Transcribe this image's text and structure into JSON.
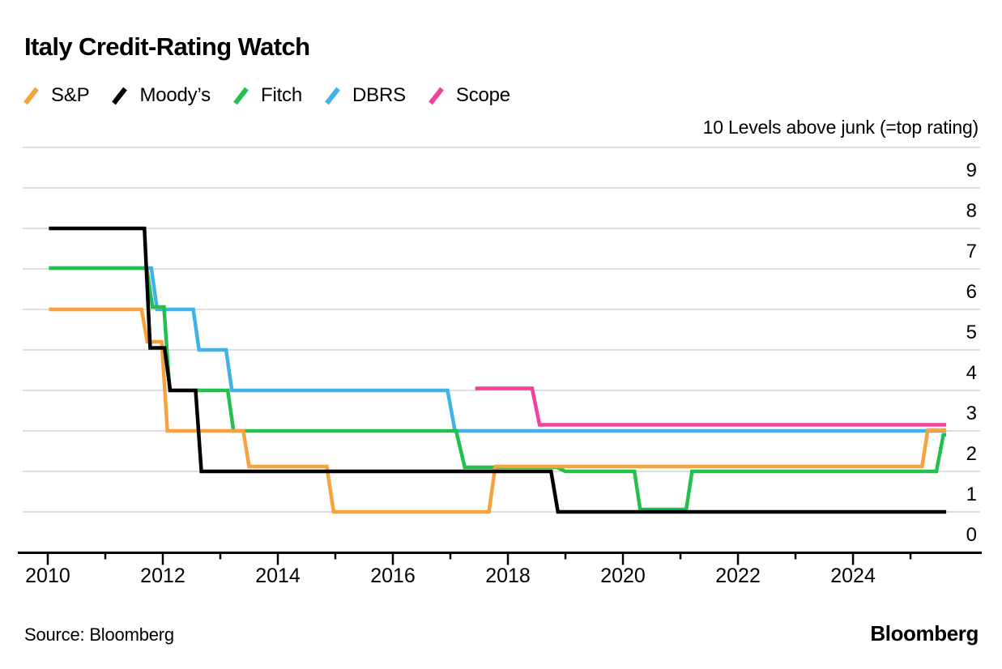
{
  "title": "Italy Credit-Rating Watch",
  "source": "Source: Bloomberg",
  "brand": "Bloomberg",
  "colors": {
    "sp": "#f7a23c",
    "moodys": "#000000",
    "fitch": "#22c04c",
    "dbrs": "#3fb2e8",
    "scope": "#f2419e",
    "gridline": "#d4d4d4",
    "axis": "#000000"
  },
  "legend": [
    {
      "label": "S&P",
      "color": "#f7a23c"
    },
    {
      "label": "Moody’s",
      "color": "#000000"
    },
    {
      "label": "Fitch",
      "color": "#22c04c"
    },
    {
      "label": "DBRS",
      "color": "#3fb2e8"
    },
    {
      "label": "Scope",
      "color": "#f2419e"
    }
  ],
  "chart_data": {
    "type": "line",
    "title": "Italy Credit-Rating Watch",
    "ylabel": "10 Levels above junk (=top rating)",
    "xlabel": "",
    "xlim": [
      2009.592,
      2026.21
    ],
    "ylim": [
      0,
      10
    ],
    "grid": "horizontal",
    "legend_position": "top-left",
    "x_ticks_major": [
      2010,
      2012,
      2014,
      2016,
      2018,
      2020,
      2022,
      2024
    ],
    "x_ticks_minor": [
      2011,
      2013,
      2015,
      2017,
      2019,
      2021,
      2023,
      2025
    ],
    "y_tick_labels": [
      0,
      1,
      2,
      3,
      4,
      5,
      6,
      7,
      8,
      9
    ],
    "y_gridline_levels": [
      1,
      2,
      3,
      4,
      5,
      6,
      7,
      8,
      9,
      10
    ],
    "series": [
      {
        "name": "DBRS",
        "color": "#3fb2e8",
        "points": [
          [
            2010.02,
            7.02
          ],
          [
            2011.8,
            7.02
          ],
          [
            2011.9,
            6
          ],
          [
            2012.53,
            6
          ],
          [
            2012.63,
            5
          ],
          [
            2013.1,
            5
          ],
          [
            2013.2,
            4
          ],
          [
            2016.95,
            4
          ],
          [
            2017.08,
            3
          ],
          [
            2025.62,
            3
          ]
        ]
      },
      {
        "name": "Fitch",
        "color": "#22c04c",
        "points": [
          [
            2010.02,
            7.02
          ],
          [
            2011.72,
            7.02
          ],
          [
            2011.82,
            6.06
          ],
          [
            2012.02,
            6.06
          ],
          [
            2012.12,
            4
          ],
          [
            2013.13,
            4
          ],
          [
            2013.23,
            3
          ],
          [
            2017.1,
            3
          ],
          [
            2017.25,
            2.1
          ],
          [
            2018.85,
            2.1
          ],
          [
            2019.0,
            2
          ],
          [
            2020.2,
            2
          ],
          [
            2020.3,
            1.06
          ],
          [
            2021.1,
            1.06
          ],
          [
            2021.2,
            2
          ],
          [
            2025.45,
            2
          ],
          [
            2025.57,
            2.9
          ],
          [
            2025.62,
            2.9
          ]
        ]
      },
      {
        "name": "S&P",
        "color": "#f7a23c",
        "points": [
          [
            2010.02,
            6
          ],
          [
            2011.63,
            6
          ],
          [
            2011.73,
            5.2
          ],
          [
            2011.98,
            5.2
          ],
          [
            2012.08,
            3
          ],
          [
            2013.4,
            3
          ],
          [
            2013.5,
            2.12
          ],
          [
            2014.85,
            2.12
          ],
          [
            2014.97,
            1
          ],
          [
            2017.67,
            1
          ],
          [
            2017.78,
            2.12
          ],
          [
            2025.2,
            2.12
          ],
          [
            2025.3,
            3.02
          ],
          [
            2025.62,
            3.02
          ]
        ]
      },
      {
        "name": "Scope",
        "color": "#f2419e",
        "points": [
          [
            2017.43,
            4.05
          ],
          [
            2018.42,
            4.05
          ],
          [
            2018.55,
            3.15
          ],
          [
            2025.62,
            3.15
          ]
        ]
      },
      {
        "name": "Moody’s",
        "color": "#000000",
        "points": [
          [
            2010.02,
            8
          ],
          [
            2011.68,
            8
          ],
          [
            2011.78,
            5.05
          ],
          [
            2012.03,
            5.05
          ],
          [
            2012.13,
            4
          ],
          [
            2012.57,
            4
          ],
          [
            2012.67,
            2
          ],
          [
            2018.75,
            2
          ],
          [
            2018.87,
            1
          ],
          [
            2025.62,
            1
          ]
        ]
      }
    ]
  }
}
